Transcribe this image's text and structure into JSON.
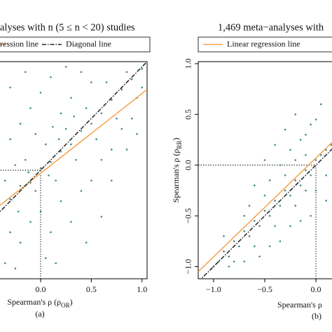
{
  "chart_data": [
    {
      "type": "scatter",
      "title": "alyses with n (5 ≤ n < 20)  studies",
      "xlabel": [
        "Spearman's ρ (ρ",
        "OR",
        ")"
      ],
      "panel_label": "(a)",
      "xlim": [
        -1.05,
        1.05
      ],
      "ylim": [
        -1.05,
        1.05
      ],
      "xticks": [
        {
          "value": 0,
          "label": "0.0"
        },
        {
          "value": 0.5,
          "label": "0.5"
        },
        {
          "value": 1,
          "label": "1.0"
        }
      ],
      "reference": {
        "x": 0,
        "y": 0
      },
      "point_color": "#3f8b8a",
      "x": [
        -0.3,
        -0.2,
        -0.1,
        0,
        0.1,
        0.2,
        0.3,
        0.4,
        0.5,
        0.6,
        0.7,
        0.8,
        0.9,
        1.0,
        -0.35,
        -0.25,
        -0.15,
        -0.05,
        0.05,
        0.15,
        0.25,
        0.35,
        0.45,
        0.55,
        0.65,
        0.75,
        0.85,
        0.95,
        -0.3,
        -0.2,
        -0.1,
        0,
        0.1,
        0.2,
        0.3,
        0.4,
        -0.3,
        -0.2,
        -0.1,
        0,
        0.1,
        0.2,
        0.3,
        0.4,
        0.5,
        0.6,
        0.7,
        0.8,
        0.9,
        1.0,
        -0.35,
        -0.25,
        0.05,
        0.15,
        0.45,
        0.6,
        -0.3,
        -0.15,
        0.25,
        0.5,
        0.7,
        0.85,
        0.95,
        -0.05,
        0.12,
        -0.22,
        0.33,
        0.08,
        -0.12,
        0.18
      ],
      "values": [
        -0.28,
        -0.15,
        -0.12,
        0.02,
        0.08,
        0.18,
        0.25,
        0.38,
        0.45,
        0.55,
        0.68,
        0.78,
        0.88,
        0.98,
        -0.1,
        0.05,
        0.1,
        -0.2,
        0.25,
        -0.1,
        0.4,
        0.1,
        0.6,
        0.3,
        0.85,
        0.5,
        0.95,
        0.7,
        0.3,
        0.45,
        0.6,
        0.75,
        0.9,
        0.55,
        0.7,
        0.95,
        -0.6,
        -0.7,
        -0.5,
        -0.4,
        -0.6,
        -0.3,
        -0.5,
        -0.2,
        -0.1,
        0.1,
        0.2,
        0.4,
        0.5,
        0.8,
        -0.9,
        -0.95,
        -0.85,
        -0.9,
        -0.7,
        -0.45,
        0.8,
        0.95,
        1.0,
        0.85,
        -0.1,
        0.2,
        0.35,
        0.35,
        0.42,
        -0.4,
        0.52,
        -0.05,
        -0.02,
        0.3
      ],
      "lines": [
        {
          "name": "ression line",
          "color": "#f5a04a",
          "dash": "solid",
          "x": [
            -1.05,
            1.05
          ],
          "values": [
            -0.84,
            0.78
          ]
        },
        {
          "name": "Diagonal line",
          "color": "#222222",
          "dash": "dashdot",
          "x": [
            -1.05,
            1.05
          ],
          "values": [
            -1.05,
            1.05
          ]
        }
      ]
    },
    {
      "type": "scatter",
      "title": "1,469 meta−analyses with",
      "xlabel": [
        "Spearman's ρ"
      ],
      "ylabel": [
        "Spearman's ρ (ρ",
        "RR",
        ")"
      ],
      "panel_label": "(b)",
      "xlim": [
        -1.15,
        1.15
      ],
      "ylim": [
        -1.12,
        1.02
      ],
      "xticks": [
        {
          "value": -1,
          "label": "−1.0"
        },
        {
          "value": -0.5,
          "label": "−0.5"
        },
        {
          "value": 0,
          "label": "0.0"
        }
      ],
      "yticks": [
        {
          "value": -1,
          "label": "−1.0"
        },
        {
          "value": -0.5,
          "label": "−0.5"
        },
        {
          "value": 0,
          "label": "0.0"
        },
        {
          "value": 0.5,
          "label": "0.5"
        },
        {
          "value": 1,
          "label": "1.0"
        }
      ],
      "reference": {
        "x": 0,
        "y": 0
      },
      "point_color": "#3f8b8a",
      "x": [
        -0.95,
        -0.9,
        -0.85,
        -0.8,
        -0.75,
        -0.7,
        -0.65,
        -0.6,
        -0.55,
        -0.5,
        -0.45,
        -0.4,
        -0.35,
        -0.3,
        -0.25,
        -0.2,
        -0.15,
        -0.1,
        -0.05,
        0,
        0.05,
        0.1,
        0.15,
        -0.9,
        -0.8,
        -0.7,
        -0.6,
        -0.5,
        -0.4,
        -0.3,
        -0.2,
        -0.1,
        0,
        0.1,
        -0.6,
        -0.5,
        -0.4,
        -0.3,
        -0.2,
        -0.1,
        0,
        0.05,
        -0.45,
        -0.35,
        -0.25,
        -0.15,
        -0.05,
        -0.7,
        -0.55,
        -0.45,
        -0.35,
        -0.25,
        -0.15,
        -0.05,
        0.1,
        -0.85,
        -1.0,
        -0.65,
        -0.2,
        -0.1
      ],
      "values": [
        -0.95,
        -0.85,
        -0.9,
        -0.75,
        -0.8,
        -0.65,
        -0.7,
        -0.55,
        -0.6,
        -0.45,
        -0.5,
        -0.35,
        -0.4,
        -0.25,
        -0.3,
        -0.15,
        -0.2,
        -0.05,
        -0.1,
        0.05,
        0.1,
        0.15,
        0.2,
        -0.7,
        -0.95,
        -0.5,
        -0.8,
        -0.3,
        -0.6,
        -0.1,
        -0.4,
        0.1,
        -0.25,
        -0.1,
        -0.2,
        0.05,
        0.2,
        0.35,
        0.5,
        0.3,
        0.45,
        0.6,
        -0.15,
        0.0,
        0.15,
        0.25,
        0.4,
        -0.95,
        -0.9,
        -0.8,
        -0.75,
        -0.6,
        -0.55,
        -0.5,
        -0.35,
        -1.0,
        -1.0,
        -0.4,
        0.05,
        -0.25
      ],
      "lines": [
        {
          "name": "Linear regression line",
          "color": "#f5a04a",
          "dash": "solid",
          "x": [
            -1.15,
            1.15
          ],
          "values": [
            -1.05,
            1.19
          ]
        },
        {
          "color": "#222222",
          "dash": "dashdot",
          "x": [
            -1.15,
            1.15
          ],
          "values": [
            -1.15,
            1.15
          ]
        }
      ]
    }
  ]
}
